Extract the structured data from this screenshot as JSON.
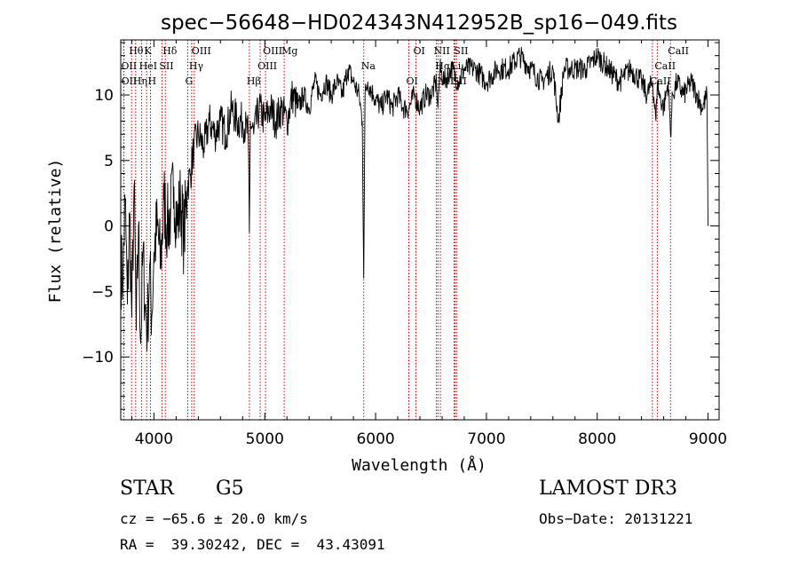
{
  "chart_data": {
    "type": "line",
    "title": "spec−56648−HD024343N412952B_sp16−049.fits",
    "xlabel": "Wavelength (Å)",
    "ylabel": "Flux (relative)",
    "xlim": [
      3700,
      9100
    ],
    "ylim": [
      -14.8,
      14.2
    ],
    "xticks": [
      4000,
      5000,
      6000,
      7000,
      8000,
      9000
    ],
    "xtick_labels": [
      "4000",
      "5000",
      "6000",
      "7000",
      "8000",
      "9000"
    ],
    "yticks": [
      -10,
      -5,
      0,
      5,
      10
    ],
    "ytick_labels": [
      "−10",
      "−5",
      "0",
      "5",
      "10"
    ],
    "grid": false,
    "series": [
      {
        "name": "flux",
        "x": [
          3700,
          3720,
          3740,
          3760,
          3780,
          3800,
          3820,
          3840,
          3860,
          3880,
          3900,
          3920,
          3940,
          3960,
          3980,
          4000,
          4030,
          4060,
          4090,
          4120,
          4150,
          4180,
          4210,
          4240,
          4270,
          4300,
          4330,
          4360,
          4400,
          4450,
          4500,
          4550,
          4600,
          4650,
          4700,
          4750,
          4800,
          4850,
          4861,
          4870,
          4900,
          4950,
          5000,
          5050,
          5100,
          5150,
          5200,
          5250,
          5300,
          5350,
          5400,
          5450,
          5500,
          5550,
          5600,
          5650,
          5700,
          5750,
          5800,
          5850,
          5880,
          5893,
          5905,
          5930,
          5980,
          6050,
          6100,
          6150,
          6200,
          6250,
          6300,
          6350,
          6400,
          6450,
          6500,
          6550,
          6563,
          6580,
          6620,
          6680,
          6750,
          6800,
          6900,
          7000,
          7100,
          7200,
          7300,
          7400,
          7500,
          7600,
          7650,
          7700,
          7800,
          7900,
          8000,
          8100,
          8200,
          8300,
          8400,
          8450,
          8500,
          8530,
          8542,
          8560,
          8600,
          8640,
          8662,
          8680,
          8720,
          8780,
          8850,
          8900,
          8950,
          8990,
          9000
        ],
        "y": [
          -3,
          -4,
          2,
          -6,
          1,
          -7,
          3,
          -8,
          0,
          -9,
          -2,
          -6,
          -8,
          -3,
          -7,
          -2,
          0,
          -3,
          2,
          0,
          1,
          3,
          0,
          2,
          -1,
          3,
          4,
          6,
          7,
          6,
          8,
          7,
          8,
          7,
          9,
          8,
          8,
          7,
          -0.5,
          8,
          7,
          9,
          8,
          9,
          8,
          9,
          8,
          10,
          9,
          10,
          9,
          11,
          10,
          11,
          10,
          11,
          10,
          12,
          11,
          10,
          8,
          -4,
          10,
          11,
          10,
          9,
          10,
          9,
          10,
          9,
          9,
          10,
          9,
          10,
          10,
          11,
          9,
          12,
          11,
          12,
          11,
          12,
          12,
          11,
          12,
          12,
          13,
          12,
          11,
          12,
          8,
          12,
          12,
          12,
          13,
          12,
          11,
          12,
          11,
          10,
          11,
          8,
          11,
          10,
          9,
          11,
          7,
          10,
          11,
          10,
          11,
          10,
          9,
          10,
          0
        ]
      }
    ],
    "annotations": [
      {
        "label": "Hθ",
        "x": 3798
      },
      {
        "label": "OII",
        "x": 3727
      },
      {
        "label": "OII",
        "x": 3729
      },
      {
        "label": "K",
        "x": 3934
      },
      {
        "label": "HeI",
        "x": 3889
      },
      {
        "label": "Hη",
        "x": 3835
      },
      {
        "label": "Hδ",
        "x": 4102
      },
      {
        "label": "SII",
        "x": 4072
      },
      {
        "label": "H",
        "x": 3968
      },
      {
        "label": "OIII",
        "x": 4363
      },
      {
        "label": "Hγ",
        "x": 4340
      },
      {
        "label": "G",
        "x": 4305
      },
      {
        "label": "OIII",
        "x": 5007
      },
      {
        "label": "OIII",
        "x": 4959
      },
      {
        "label": "Hβ",
        "x": 4861
      },
      {
        "label": "Mg",
        "x": 5175
      },
      {
        "label": "Na",
        "x": 5893
      },
      {
        "label": "OI",
        "x": 6300
      },
      {
        "label": "OI",
        "x": 6364
      },
      {
        "label": "Hα",
        "x": 6563
      },
      {
        "label": "SII",
        "x": 6717
      },
      {
        "label": "NII",
        "x": 6548
      },
      {
        "label": "Li",
        "x": 6708
      },
      {
        "label": "NII",
        "x": 6584
      },
      {
        "label": "SII",
        "x": 6731
      },
      {
        "label": "CaII",
        "x": 8542
      },
      {
        "label": "CaII",
        "x": 8498
      },
      {
        "label": "CaII",
        "x": 8662
      }
    ]
  },
  "info": {
    "object_class": "STAR",
    "subclass": "G5",
    "survey": "LAMOST DR3",
    "redshift": "cz = −65.6 ± 20.0 km/s",
    "obs_date": "Obs−Date: 20131221",
    "coords": "RA =  39.30242, DEC =  43.43091"
  },
  "colors": {
    "line": "#000000",
    "marker": "#cc0000",
    "axis": "#000000"
  }
}
